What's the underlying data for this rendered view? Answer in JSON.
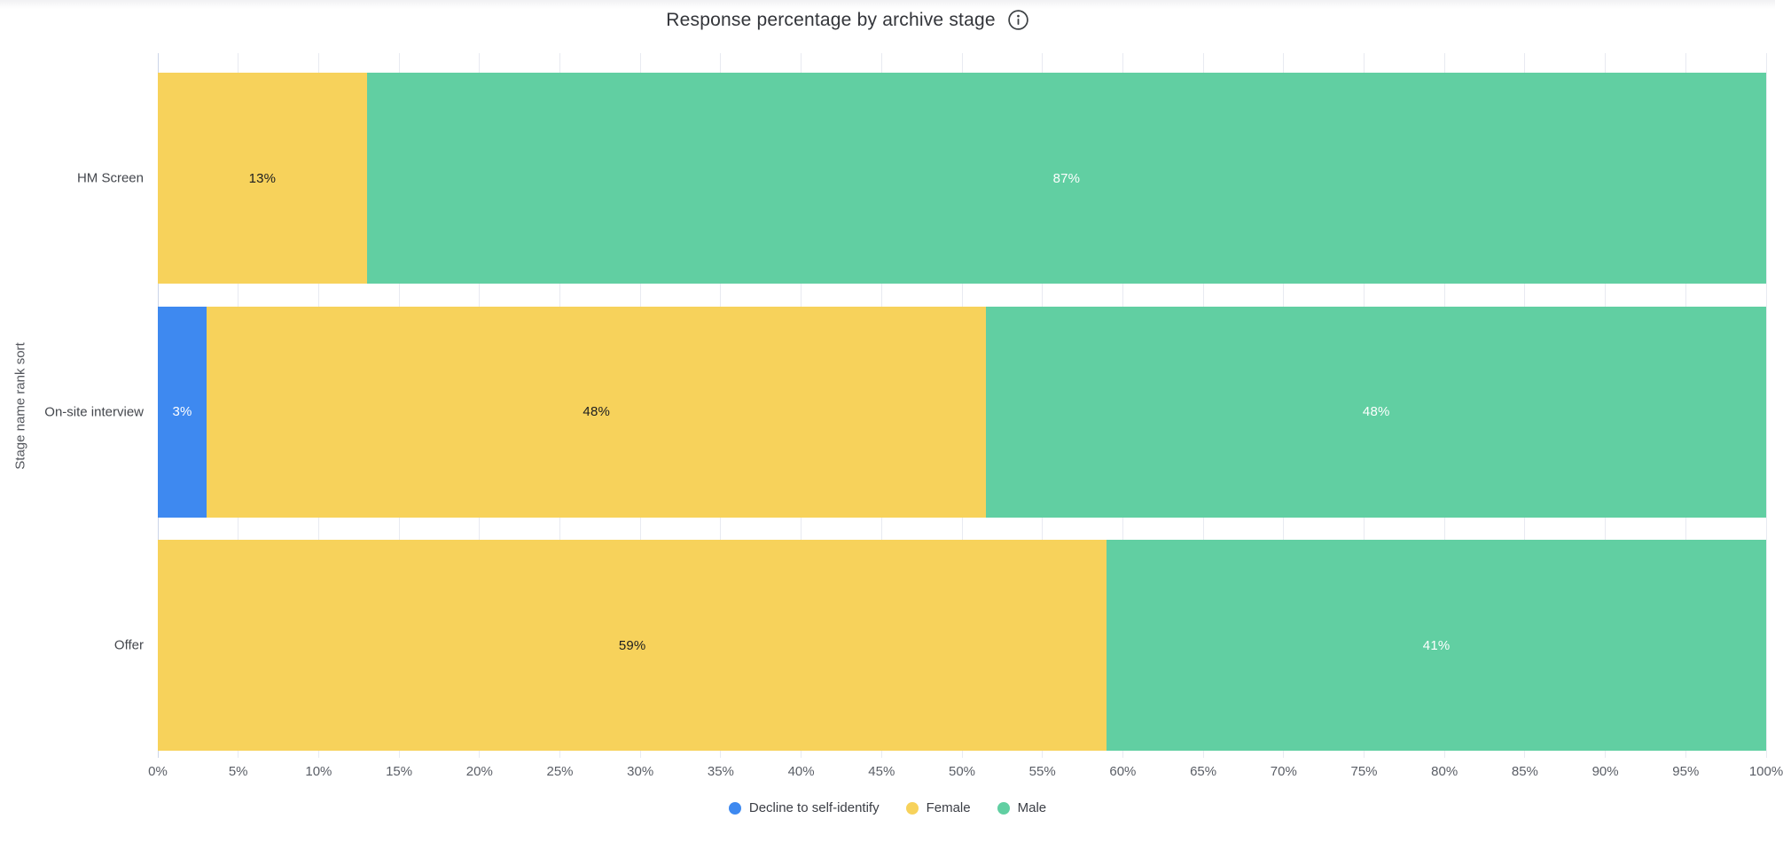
{
  "title": {
    "text": "Response percentage by archive stage",
    "info_icon": "info-circle"
  },
  "colors": {
    "background": "#ffffff",
    "decline_blue": "#3e89f0",
    "female_yellow": "#f7d25b",
    "male_green": "#61cfa2",
    "grid_line": "#e8eaf1",
    "zero_axis_line": "#ccd5e8",
    "title_text": "#33353a",
    "axis_text": "#5a5e66",
    "category_text": "#44474d",
    "label_on_yellow": "#1c1d20",
    "label_on_color": "#ffffff"
  },
  "chart_data": {
    "type": "bar",
    "orientation": "horizontal",
    "stacked": true,
    "title": "Response percentage by archive stage",
    "xlabel": "",
    "ylabel": "Stage name rank sort",
    "xlim": [
      0,
      100
    ],
    "grid": true,
    "legend_position": "bottom",
    "categories": [
      "HM Screen",
      "On-site interview",
      "Offer"
    ],
    "x_ticks": [
      "0%",
      "5%",
      "10%",
      "15%",
      "20%",
      "25%",
      "30%",
      "35%",
      "40%",
      "45%",
      "50%",
      "55%",
      "60%",
      "65%",
      "70%",
      "75%",
      "80%",
      "85%",
      "90%",
      "95%",
      "100%"
    ],
    "series": [
      {
        "name": "Decline to self-identify",
        "color": "#3e89f0",
        "label_color": "#ffffff",
        "values": [
          0,
          3,
          0
        ]
      },
      {
        "name": "Female",
        "color": "#f7d25b",
        "label_color": "#1c1d20",
        "values": [
          13,
          48,
          59
        ]
      },
      {
        "name": "Male",
        "color": "#61cfa2",
        "label_color": "#ffffff",
        "values": [
          87,
          48,
          41
        ]
      }
    ],
    "value_suffix": "%"
  },
  "legend": {
    "items": [
      {
        "label": "Decline to self-identify",
        "color": "#3e89f0"
      },
      {
        "label": "Female",
        "color": "#f7d25b"
      },
      {
        "label": "Male",
        "color": "#61cfa2"
      }
    ]
  }
}
